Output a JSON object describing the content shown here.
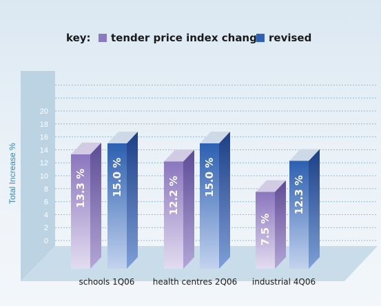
{
  "chart_data": {
    "type": "bar",
    "key_label": "key:",
    "ylabel": "Total Increase %",
    "ylim": [
      0,
      20
    ],
    "yticks": [
      0,
      2,
      4,
      6,
      8,
      10,
      12,
      14,
      16,
      18,
      20
    ],
    "categories": [
      "schools 1Q06",
      "health centres 2Q06",
      "industrial 4Q06"
    ],
    "series": [
      {
        "name": "tender price index change",
        "values": [
          13.3,
          12.2,
          7.5
        ],
        "labels": [
          "13.3 %",
          "12.2 %",
          "7.5 %"
        ],
        "color": "#8d79c0"
      },
      {
        "name": "revised",
        "values": [
          15.0,
          15.0,
          12.3
        ],
        "labels": [
          "15.0 %",
          "15.0 %",
          "12.3 %"
        ],
        "color": "#2f62b3"
      }
    ],
    "grid": true,
    "legend_position": "top"
  }
}
